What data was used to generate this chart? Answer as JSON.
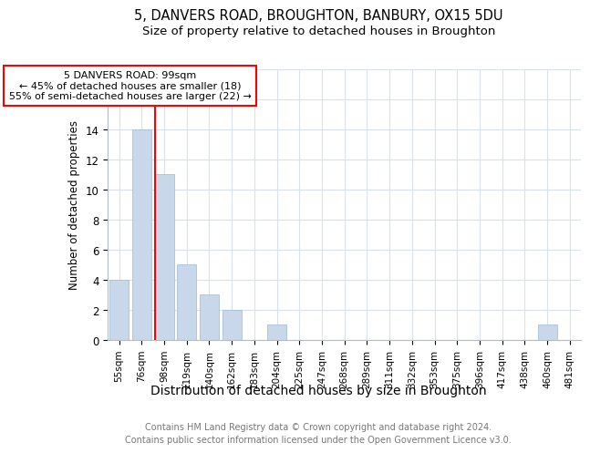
{
  "title1": "5, DANVERS ROAD, BROUGHTON, BANBURY, OX15 5DU",
  "title2": "Size of property relative to detached houses in Broughton",
  "xlabel": "Distribution of detached houses by size in Broughton",
  "ylabel": "Number of detached properties",
  "footer1": "Contains HM Land Registry data © Crown copyright and database right 2024.",
  "footer2": "Contains public sector information licensed under the Open Government Licence v3.0.",
  "categories": [
    "55sqm",
    "76sqm",
    "98sqm",
    "119sqm",
    "140sqm",
    "162sqm",
    "183sqm",
    "204sqm",
    "225sqm",
    "247sqm",
    "268sqm",
    "289sqm",
    "311sqm",
    "332sqm",
    "353sqm",
    "375sqm",
    "396sqm",
    "417sqm",
    "438sqm",
    "460sqm",
    "481sqm"
  ],
  "values": [
    4,
    14,
    11,
    5,
    3,
    2,
    0,
    1,
    0,
    0,
    0,
    0,
    0,
    0,
    0,
    0,
    0,
    0,
    0,
    1,
    0
  ],
  "bar_color": "#c8d8ea",
  "bar_edgecolor": "#a0b8d0",
  "redline_index": 2,
  "annotation_line1": "5 DANVERS ROAD: 99sqm",
  "annotation_line2": "← 45% of detached houses are smaller (18)",
  "annotation_line3": "55% of semi-detached houses are larger (22) →",
  "ylim_max": 18,
  "grid_color": "#d8e0ec",
  "background_color": "#ffffff",
  "title1_fontsize": 10.5,
  "title2_fontsize": 9.5,
  "xlabel_fontsize": 10,
  "ylabel_fontsize": 8.5,
  "tick_fontsize": 7.5,
  "footer_fontsize": 7,
  "annot_fontsize": 8
}
